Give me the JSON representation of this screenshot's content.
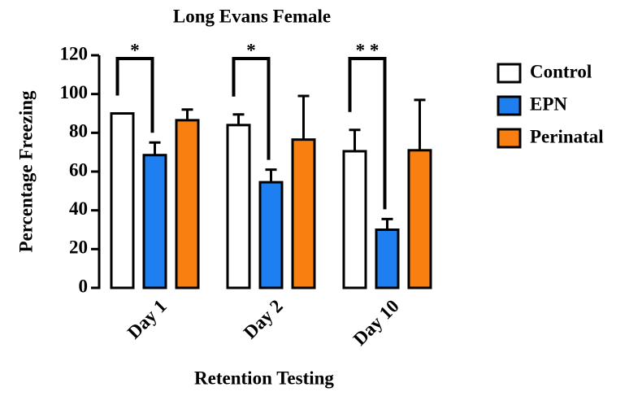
{
  "chart_data": {
    "type": "bar",
    "title": "Long Evans Female",
    "x_label": "Retention Testing",
    "y_label": "Percentage Freezing",
    "categories": [
      "Day 1",
      "Day 2",
      "Day 10"
    ],
    "series": [
      {
        "name": "Control",
        "color": "#ffffff",
        "values": [
          90,
          84,
          70.5
        ],
        "errors": [
          null,
          5.5,
          11
        ]
      },
      {
        "name": "EPN",
        "color": "#1e80f0",
        "values": [
          68.5,
          54.5,
          30
        ],
        "errors": [
          6.5,
          6.5,
          5.5
        ]
      },
      {
        "name": "Perinatal",
        "color": "#f98010",
        "values": [
          86.5,
          76.5,
          71
        ],
        "errors": [
          5.5,
          22.5,
          26
        ]
      }
    ],
    "annotations": [
      {
        "text": "*",
        "category": 0
      },
      {
        "text": "*",
        "category": 1
      },
      {
        "text": "* *",
        "category": 2
      }
    ],
    "ylim": [
      0,
      120
    ],
    "yticks": [
      0,
      20,
      40,
      60,
      80,
      100,
      120
    ],
    "legend": "right"
  }
}
